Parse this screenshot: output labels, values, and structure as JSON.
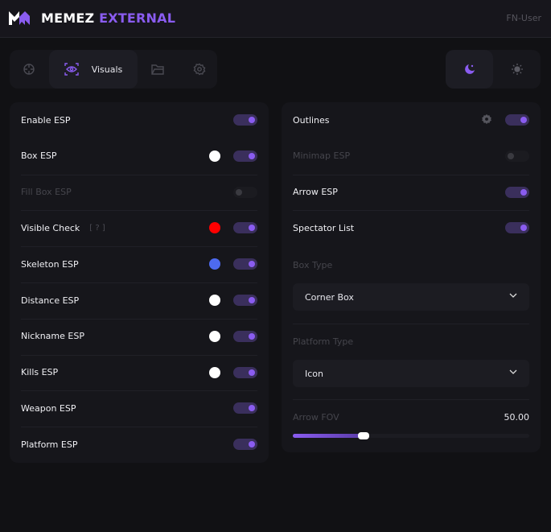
{
  "header": {
    "brand_primary": "MEMEZ",
    "brand_accent": "EXTERNAL",
    "user": "FN-User",
    "accent_color": "#8a5cf0"
  },
  "tabs": [
    {
      "icon": "crosshair-icon"
    },
    {
      "icon": "eye-icon",
      "label": "Visuals",
      "active": true
    },
    {
      "icon": "folder-icon"
    },
    {
      "icon": "gear-icon"
    }
  ],
  "theme": {
    "options": [
      "dark",
      "light"
    ],
    "selected": "dark"
  },
  "left": {
    "rows": [
      {
        "label": "Enable ESP",
        "on": true
      },
      {
        "label": "Box ESP",
        "on": true,
        "color": "#ffffff"
      },
      {
        "label": "Fill Box ESP",
        "on": false,
        "disabled": true
      },
      {
        "label": "Visible Check",
        "hint": "[ ? ]",
        "on": true,
        "color": "#ff0000"
      },
      {
        "label": "Skeleton ESP",
        "on": true,
        "color": "#4d6af0"
      },
      {
        "label": "Distance ESP",
        "on": true,
        "color": "#ffffff"
      },
      {
        "label": "Nickname ESP",
        "on": true,
        "color": "#ffffff"
      },
      {
        "label": "Kills ESP",
        "on": true,
        "color": "#ffffff"
      },
      {
        "label": "Weapon ESP",
        "on": true
      },
      {
        "label": "Platform ESP",
        "on": true
      }
    ]
  },
  "right": {
    "rows": [
      {
        "label": "Outlines",
        "on": true,
        "settings": true
      },
      {
        "label": "Minimap ESP",
        "on": false,
        "disabled": true
      },
      {
        "label": "Arrow ESP",
        "on": true
      },
      {
        "label": "Spectator List",
        "on": true
      }
    ],
    "box_type": {
      "label": "Box Type",
      "value": "Corner Box"
    },
    "platform_type": {
      "label": "Platform Type",
      "value": "Icon"
    },
    "arrow_fov": {
      "label": "Arrow FOV",
      "value": "50.00",
      "fill_fraction": 0.3
    }
  }
}
